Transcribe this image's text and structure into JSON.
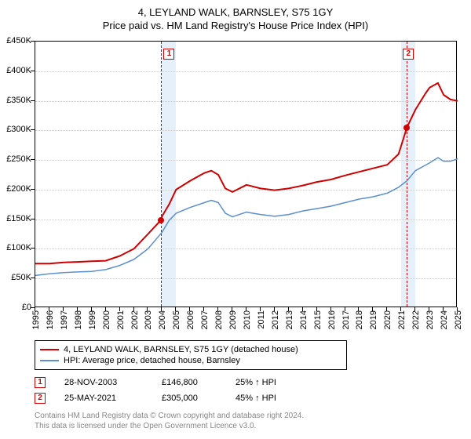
{
  "title": "4, LEYLAND WALK, BARNSLEY, S75 1GY",
  "subtitle": "Price paid vs. HM Land Registry's House Price Index (HPI)",
  "chart": {
    "type": "line",
    "background_color": "#ffffff",
    "grid_color": "#cccccc",
    "border_color": "#000000",
    "band_color": "#e6f0fa",
    "y": {
      "min": 0,
      "max": 450,
      "step": 50,
      "prefix": "£",
      "suffix": "K"
    },
    "x": {
      "min": 1995,
      "max": 2025,
      "step": 1
    },
    "bands": [
      {
        "start": 2004,
        "end": 2005
      },
      {
        "start": 2021,
        "end": 2022
      }
    ],
    "vdash_years": [
      2003.9,
      2021.4
    ],
    "series": [
      {
        "id": "subject",
        "label": "4, LEYLAND WALK, BARNSLEY, S75 1GY (detached house)",
        "color": "#d00000",
        "width": 2,
        "points": [
          [
            1995,
            75
          ],
          [
            1996,
            75
          ],
          [
            1997,
            77
          ],
          [
            1998,
            78
          ],
          [
            1999,
            79
          ],
          [
            2000,
            80
          ],
          [
            2001,
            88
          ],
          [
            2002,
            100
          ],
          [
            2003,
            125
          ],
          [
            2003.9,
            148
          ],
          [
            2004,
            155
          ],
          [
            2004.5,
            175
          ],
          [
            2005,
            200
          ],
          [
            2006,
            215
          ],
          [
            2007,
            228
          ],
          [
            2007.5,
            232
          ],
          [
            2008,
            225
          ],
          [
            2008.5,
            202
          ],
          [
            2009,
            196
          ],
          [
            2010,
            208
          ],
          [
            2011,
            202
          ],
          [
            2012,
            199
          ],
          [
            2013,
            202
          ],
          [
            2014,
            207
          ],
          [
            2015,
            213
          ],
          [
            2016,
            217
          ],
          [
            2017,
            224
          ],
          [
            2018,
            230
          ],
          [
            2019,
            236
          ],
          [
            2020,
            242
          ],
          [
            2020.8,
            260
          ],
          [
            2021.4,
            305
          ],
          [
            2022,
            335
          ],
          [
            2022.7,
            362
          ],
          [
            2023,
            372
          ],
          [
            2023.6,
            380
          ],
          [
            2024,
            360
          ],
          [
            2024.5,
            352
          ],
          [
            2025,
            350
          ]
        ]
      },
      {
        "id": "hpi",
        "label": "HPI: Average price, detached house, Barnsley",
        "color": "#5b8fcf",
        "width": 1.5,
        "points": [
          [
            1995,
            55
          ],
          [
            1996,
            58
          ],
          [
            1997,
            60
          ],
          [
            1998,
            61
          ],
          [
            1999,
            62
          ],
          [
            2000,
            65
          ],
          [
            2001,
            72
          ],
          [
            2002,
            82
          ],
          [
            2003,
            100
          ],
          [
            2004,
            128
          ],
          [
            2004.5,
            148
          ],
          [
            2005,
            160
          ],
          [
            2006,
            170
          ],
          [
            2007,
            178
          ],
          [
            2007.5,
            182
          ],
          [
            2008,
            178
          ],
          [
            2008.5,
            160
          ],
          [
            2009,
            154
          ],
          [
            2010,
            162
          ],
          [
            2011,
            158
          ],
          [
            2012,
            155
          ],
          [
            2013,
            158
          ],
          [
            2014,
            164
          ],
          [
            2015,
            168
          ],
          [
            2016,
            172
          ],
          [
            2017,
            178
          ],
          [
            2018,
            184
          ],
          [
            2019,
            188
          ],
          [
            2020,
            194
          ],
          [
            2020.8,
            204
          ],
          [
            2021.4,
            215
          ],
          [
            2022,
            232
          ],
          [
            2023,
            245
          ],
          [
            2023.6,
            254
          ],
          [
            2024,
            248
          ],
          [
            2024.5,
            248
          ],
          [
            2025,
            252
          ]
        ]
      }
    ],
    "transactions": [
      {
        "n": "1",
        "year": 2003.9,
        "value": 148
      },
      {
        "n": "2",
        "year": 2021.4,
        "value": 305
      }
    ],
    "markers": [
      {
        "n": "1",
        "year": 2004.5,
        "ypx": 16
      },
      {
        "n": "2",
        "year": 2021.5,
        "ypx": 16
      }
    ]
  },
  "legend": {
    "items": [
      {
        "color": "#d00000",
        "label": "4, LEYLAND WALK, BARNSLEY, S75 1GY (detached house)"
      },
      {
        "color": "#5b8fcf",
        "label": "HPI: Average price, detached house, Barnsley"
      }
    ]
  },
  "tx_table": [
    {
      "n": "1",
      "date": "28-NOV-2003",
      "price": "£146,800",
      "delta": "25% ↑ HPI"
    },
    {
      "n": "2",
      "date": "25-MAY-2021",
      "price": "£305,000",
      "delta": "45% ↑ HPI"
    }
  ],
  "footnotes": [
    "Contains HM Land Registry data © Crown copyright and database right 2024.",
    "This data is licensed under the Open Government Licence v3.0."
  ]
}
